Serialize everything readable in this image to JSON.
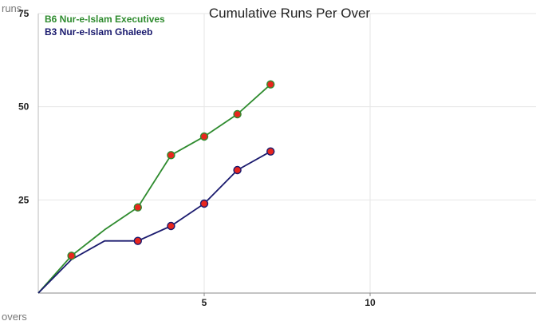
{
  "chart_data": {
    "type": "line",
    "title": "Cumulative Runs Per Over",
    "ylabel": "runs",
    "xlabel": "overs",
    "xlim": [
      0,
      15
    ],
    "ylim": [
      0,
      75
    ],
    "xticks": [
      5,
      10
    ],
    "yticks": [
      25,
      50,
      75
    ],
    "grid": true,
    "legend_position": "top-left",
    "series": [
      {
        "name": "B6 Nur-e-Islam Executives",
        "color": "#2e8b2e",
        "x": [
          0,
          1,
          2,
          3,
          4,
          5,
          6,
          7
        ],
        "y": [
          0,
          10,
          17,
          23,
          37,
          42,
          48,
          56
        ],
        "markers_at": [
          1,
          3,
          4,
          5,
          6,
          7
        ]
      },
      {
        "name": "B3 Nur-e-Islam Ghaleeb",
        "color": "#1a1a6e",
        "x": [
          0,
          1,
          2,
          3,
          4,
          5,
          6,
          7
        ],
        "y": [
          0,
          9,
          14,
          14,
          18,
          24,
          33,
          38
        ],
        "markers_at": [
          3,
          4,
          5,
          6,
          7
        ]
      }
    ],
    "marker_color": "#e8261e"
  }
}
